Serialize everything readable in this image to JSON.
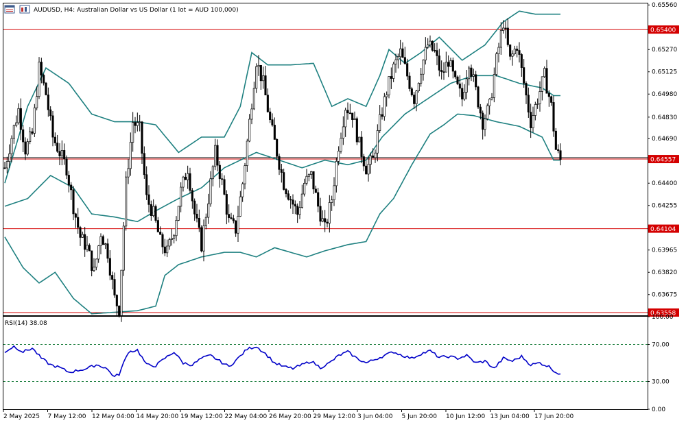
{
  "header": {
    "symbol": "AUDUSD",
    "timeframe": "H4:",
    "description": "Australian Dollar vs US Dollar (1 lot = AUD 100,000)"
  },
  "icons": [
    "chart-window-icon",
    "chart-type-icon"
  ],
  "colors": {
    "candle": "#000000",
    "bollinger": "#1e8080",
    "level_line": "#d40000",
    "rsi_line": "#0000c8",
    "tag_bg": "#d40000"
  },
  "price_axis": {
    "labels": [
      "0.65560",
      "0.65400",
      "0.65270",
      "0.65125",
      "0.64980",
      "0.64830",
      "0.64690",
      "0.64557",
      "0.64400",
      "0.64255",
      "0.64104",
      "0.63965",
      "0.63820",
      "0.63675",
      "0.63558"
    ],
    "ylim": [
      0.6354,
      0.6557
    ]
  },
  "level_tags": [
    {
      "name": "upper-resistance",
      "label": "0.65400",
      "value": 0.654
    },
    {
      "name": "current-price",
      "label": "0.64557",
      "value": 0.64557
    },
    {
      "name": "support",
      "label": "0.64104",
      "value": 0.64104
    },
    {
      "name": "lower-support",
      "label": "0.63558",
      "value": 0.63558
    }
  ],
  "indicator": {
    "title": "RSI(14) 38.08",
    "axis_labels": [
      "100.00",
      "70.00",
      "30.00",
      "0.00"
    ],
    "levels": [
      70,
      30
    ],
    "ylim": [
      0,
      100
    ]
  },
  "time_axis": {
    "labels": [
      "2 May 2025",
      "7 May 12:00",
      "12 May 04:00",
      "14 May 20:00",
      "19 May 12:00",
      "22 May 04:00",
      "26 May 20:00",
      "29 May 12:00",
      "3 Jun 04:00",
      "5 Jun 20:00",
      "10 Jun 12:00",
      "13 Jun 04:00",
      "17 Jun 20:00"
    ]
  },
  "chart_data": {
    "type": "candlestick",
    "title": "AUDUSD, H4: Australian Dollar vs US Dollar (1 lot = AUD 100,000)",
    "ylim": [
      0.6354,
      0.6557
    ],
    "close_anchors": [
      [
        0,
        0.645
      ],
      [
        3,
        0.647
      ],
      [
        6,
        0.6488
      ],
      [
        9,
        0.6462
      ],
      [
        12,
        0.6472
      ],
      [
        15,
        0.6515
      ],
      [
        18,
        0.6498
      ],
      [
        21,
        0.647
      ],
      [
        24,
        0.646
      ],
      [
        27,
        0.645
      ],
      [
        30,
        0.6425
      ],
      [
        33,
        0.6405
      ],
      [
        36,
        0.6398
      ],
      [
        39,
        0.6382
      ],
      [
        42,
        0.6408
      ],
      [
        45,
        0.6395
      ],
      [
        48,
        0.6365
      ],
      [
        50,
        0.6358
      ],
      [
        53,
        0.644
      ],
      [
        56,
        0.648
      ],
      [
        59,
        0.6475
      ],
      [
        62,
        0.643
      ],
      [
        65,
        0.642
      ],
      [
        68,
        0.6402
      ],
      [
        71,
        0.6395
      ],
      [
        74,
        0.641
      ],
      [
        77,
        0.6435
      ],
      [
        80,
        0.645
      ],
      [
        83,
        0.642
      ],
      [
        86,
        0.64
      ],
      [
        89,
        0.643
      ],
      [
        92,
        0.646
      ],
      [
        95,
        0.644
      ],
      [
        98,
        0.6415
      ],
      [
        101,
        0.641
      ],
      [
        104,
        0.644
      ],
      [
        107,
        0.648
      ],
      [
        110,
        0.652
      ],
      [
        113,
        0.6505
      ],
      [
        116,
        0.648
      ],
      [
        119,
        0.646
      ],
      [
        122,
        0.644
      ],
      [
        125,
        0.643
      ],
      [
        128,
        0.642
      ],
      [
        131,
        0.644
      ],
      [
        134,
        0.6445
      ],
      [
        137,
        0.6425
      ],
      [
        140,
        0.641
      ],
      [
        143,
        0.643
      ],
      [
        146,
        0.6465
      ],
      [
        149,
        0.649
      ],
      [
        152,
        0.6485
      ],
      [
        155,
        0.6465
      ],
      [
        158,
        0.645
      ],
      [
        161,
        0.6455
      ],
      [
        164,
        0.648
      ],
      [
        167,
        0.65
      ],
      [
        170,
        0.6515
      ],
      [
        173,
        0.6525
      ],
      [
        176,
        0.651
      ],
      [
        179,
        0.6495
      ],
      [
        182,
        0.6515
      ],
      [
        185,
        0.653
      ],
      [
        188,
        0.6525
      ],
      [
        191,
        0.651
      ],
      [
        194,
        0.652
      ],
      [
        197,
        0.6505
      ],
      [
        200,
        0.6495
      ],
      [
        203,
        0.652
      ],
      [
        206,
        0.65
      ],
      [
        209,
        0.648
      ],
      [
        212,
        0.649
      ],
      [
        215,
        0.652
      ],
      [
        218,
        0.6545
      ],
      [
        221,
        0.652
      ],
      [
        224,
        0.653
      ],
      [
        227,
        0.6505
      ],
      [
        230,
        0.648
      ],
      [
        233,
        0.6495
      ],
      [
        236,
        0.651
      ],
      [
        239,
        0.649
      ],
      [
        241,
        0.6462
      ],
      [
        243,
        0.6455
      ]
    ],
    "bollinger": {
      "upper": [
        [
          0,
          0.644
        ],
        [
          10,
          0.649
        ],
        [
          18,
          0.6515
        ],
        [
          28,
          0.6505
        ],
        [
          38,
          0.6485
        ],
        [
          48,
          0.648
        ],
        [
          58,
          0.648
        ],
        [
          66,
          0.6478
        ],
        [
          76,
          0.646
        ],
        [
          86,
          0.647
        ],
        [
          96,
          0.647
        ],
        [
          103,
          0.649
        ],
        [
          108,
          0.6525
        ],
        [
          115,
          0.6517
        ],
        [
          125,
          0.6517
        ],
        [
          135,
          0.6518
        ],
        [
          143,
          0.649
        ],
        [
          150,
          0.6495
        ],
        [
          158,
          0.649
        ],
        [
          164,
          0.651
        ],
        [
          168,
          0.6527
        ],
        [
          175,
          0.6518
        ],
        [
          182,
          0.6525
        ],
        [
          190,
          0.6535
        ],
        [
          200,
          0.652
        ],
        [
          210,
          0.653
        ],
        [
          218,
          0.6545
        ],
        [
          225,
          0.6552
        ],
        [
          232,
          0.655
        ],
        [
          240,
          0.655
        ]
      ],
      "middle": [
        [
          0,
          0.6425
        ],
        [
          10,
          0.643
        ],
        [
          20,
          0.6445
        ],
        [
          30,
          0.6437
        ],
        [
          38,
          0.642
        ],
        [
          48,
          0.6418
        ],
        [
          58,
          0.6415
        ],
        [
          66,
          0.6422
        ],
        [
          76,
          0.643
        ],
        [
          86,
          0.6437
        ],
        [
          96,
          0.645
        ],
        [
          103,
          0.6455
        ],
        [
          110,
          0.646
        ],
        [
          120,
          0.6455
        ],
        [
          130,
          0.645
        ],
        [
          140,
          0.6455
        ],
        [
          150,
          0.6452
        ],
        [
          158,
          0.6455
        ],
        [
          165,
          0.647
        ],
        [
          175,
          0.6485
        ],
        [
          185,
          0.6495
        ],
        [
          195,
          0.6505
        ],
        [
          205,
          0.651
        ],
        [
          215,
          0.651
        ],
        [
          225,
          0.6505
        ],
        [
          235,
          0.6502
        ],
        [
          240,
          0.6497
        ]
      ],
      "lower": [
        [
          0,
          0.6405
        ],
        [
          8,
          0.6385
        ],
        [
          15,
          0.6375
        ],
        [
          22,
          0.6382
        ],
        [
          30,
          0.6365
        ],
        [
          38,
          0.6355
        ],
        [
          48,
          0.6356
        ],
        [
          58,
          0.6357
        ],
        [
          66,
          0.636
        ],
        [
          70,
          0.638
        ],
        [
          76,
          0.6387
        ],
        [
          86,
          0.6392
        ],
        [
          96,
          0.6395
        ],
        [
          103,
          0.6395
        ],
        [
          110,
          0.6392
        ],
        [
          118,
          0.6398
        ],
        [
          125,
          0.6395
        ],
        [
          132,
          0.6392
        ],
        [
          140,
          0.6396
        ],
        [
          150,
          0.64
        ],
        [
          158,
          0.6402
        ],
        [
          164,
          0.642
        ],
        [
          170,
          0.643
        ],
        [
          178,
          0.6452
        ],
        [
          186,
          0.6472
        ],
        [
          192,
          0.6478
        ],
        [
          198,
          0.6485
        ],
        [
          205,
          0.6484
        ],
        [
          215,
          0.648
        ],
        [
          225,
          0.6477
        ],
        [
          235,
          0.647
        ],
        [
          240,
          0.6455
        ]
      ]
    },
    "rsi": [
      [
        0,
        62
      ],
      [
        4,
        68
      ],
      [
        8,
        62
      ],
      [
        12,
        66
      ],
      [
        16,
        55
      ],
      [
        20,
        48
      ],
      [
        24,
        45
      ],
      [
        28,
        40
      ],
      [
        32,
        42
      ],
      [
        36,
        44
      ],
      [
        40,
        48
      ],
      [
        44,
        45
      ],
      [
        48,
        35
      ],
      [
        50,
        38
      ],
      [
        54,
        62
      ],
      [
        58,
        64
      ],
      [
        62,
        48
      ],
      [
        66,
        47
      ],
      [
        70,
        55
      ],
      [
        74,
        62
      ],
      [
        78,
        50
      ],
      [
        82,
        48
      ],
      [
        86,
        55
      ],
      [
        90,
        58
      ],
      [
        94,
        52
      ],
      [
        98,
        46
      ],
      [
        102,
        55
      ],
      [
        106,
        65
      ],
      [
        110,
        68
      ],
      [
        114,
        60
      ],
      [
        118,
        50
      ],
      [
        122,
        46
      ],
      [
        126,
        44
      ],
      [
        130,
        48
      ],
      [
        134,
        52
      ],
      [
        138,
        45
      ],
      [
        142,
        50
      ],
      [
        146,
        58
      ],
      [
        150,
        62
      ],
      [
        154,
        55
      ],
      [
        158,
        50
      ],
      [
        162,
        54
      ],
      [
        166,
        58
      ],
      [
        170,
        62
      ],
      [
        174,
        58
      ],
      [
        178,
        55
      ],
      [
        182,
        60
      ],
      [
        186,
        63
      ],
      [
        190,
        56
      ],
      [
        194,
        57
      ],
      [
        198,
        55
      ],
      [
        202,
        58
      ],
      [
        206,
        50
      ],
      [
        210,
        52
      ],
      [
        214,
        44
      ],
      [
        218,
        55
      ],
      [
        222,
        52
      ],
      [
        226,
        57
      ],
      [
        230,
        48
      ],
      [
        234,
        50
      ],
      [
        238,
        46
      ],
      [
        241,
        40
      ],
      [
        243,
        38
      ]
    ]
  }
}
